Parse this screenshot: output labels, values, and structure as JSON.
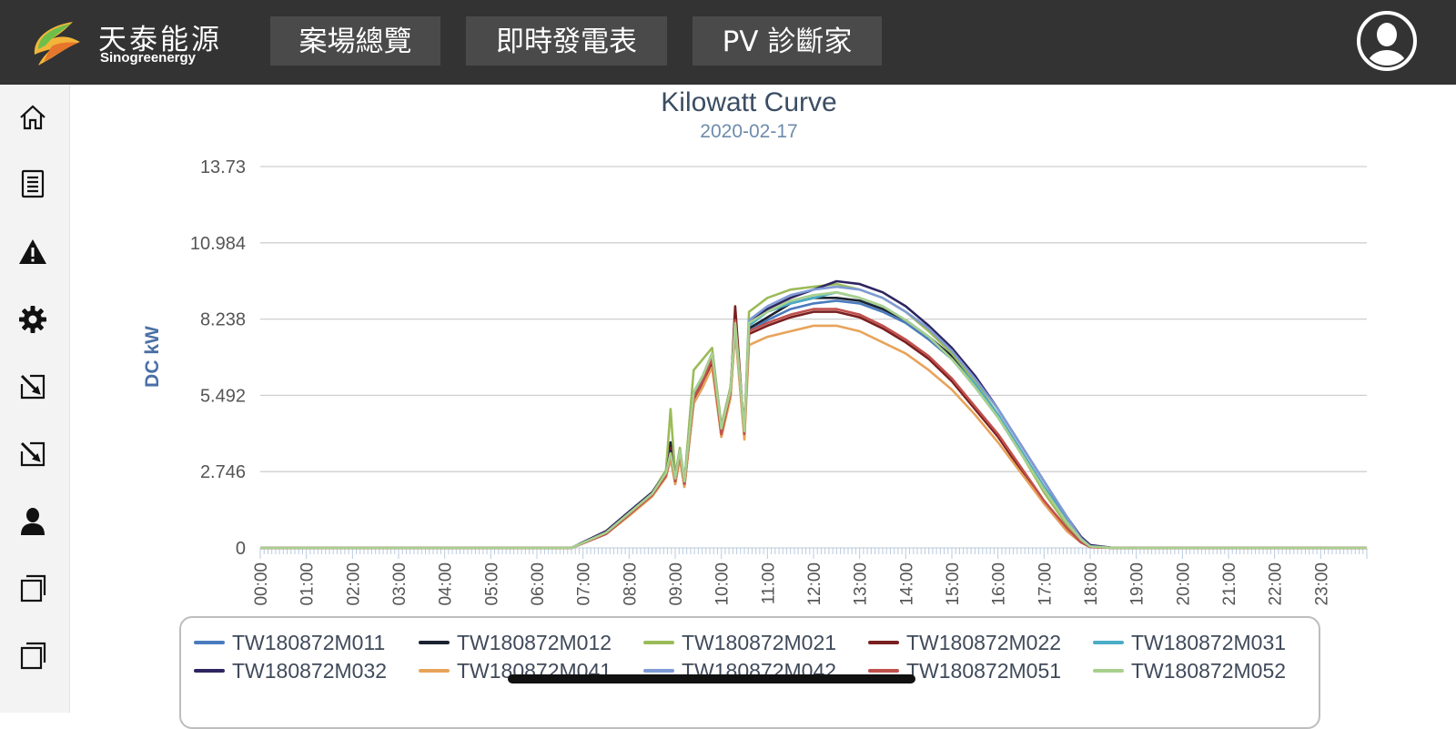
{
  "header": {
    "logo_cn": "天泰能源",
    "logo_en": "Sinogreenergy",
    "nav": [
      {
        "label": "案場總覽"
      },
      {
        "label": "即時發電表"
      },
      {
        "label": "PV 診斷家"
      }
    ],
    "colors": {
      "bar": "#333333",
      "button": "#4a4a4a"
    }
  },
  "sidebar": {
    "items": [
      {
        "icon": "home-icon"
      },
      {
        "icon": "document-icon"
      },
      {
        "icon": "warning-icon"
      },
      {
        "icon": "gear-icon"
      },
      {
        "icon": "edit-icon"
      },
      {
        "icon": "edit-icon"
      },
      {
        "icon": "user-icon"
      },
      {
        "icon": "window-icon"
      },
      {
        "icon": "window-icon"
      }
    ]
  },
  "chart_data": {
    "type": "line",
    "title": "Kilowatt Curve",
    "subtitle": "2020-02-17",
    "xlabel": "",
    "ylabel": "DC kW",
    "ylim": [
      0,
      13.73
    ],
    "yticks": [
      "0",
      "2.746",
      "5.492",
      "8.238",
      "10.984",
      "13.73"
    ],
    "xticks": [
      "00:00",
      "01:00",
      "02:00",
      "03:00",
      "04:00",
      "05:00",
      "06:00",
      "07:00",
      "08:00",
      "09:00",
      "10:00",
      "11:00",
      "12:00",
      "13:00",
      "14:00",
      "15:00",
      "16:00",
      "17:00",
      "18:00",
      "19:00",
      "20:00",
      "21:00",
      "22:00",
      "23:00"
    ],
    "grid": true,
    "legend_position": "bottom",
    "x_hours": [
      6.75,
      7.5,
      8.0,
      8.5,
      8.8,
      8.9,
      9.0,
      9.1,
      9.2,
      9.4,
      9.6,
      9.8,
      10.0,
      10.2,
      10.3,
      10.5,
      10.6,
      11.0,
      11.5,
      12.0,
      12.5,
      13.0,
      13.5,
      14.0,
      14.5,
      15.0,
      15.5,
      16.0,
      16.5,
      17.0,
      17.5,
      17.8,
      18.0,
      18.5
    ],
    "series": [
      {
        "name": "TW180872M011",
        "color": "#4a7bbf",
        "values": [
          0,
          0.55,
          1.2,
          1.9,
          2.6,
          3.2,
          2.4,
          3.3,
          2.3,
          5.2,
          5.8,
          6.6,
          4.1,
          5.5,
          7.9,
          4.0,
          7.8,
          8.2,
          8.6,
          8.8,
          8.9,
          8.8,
          8.5,
          8.1,
          7.5,
          6.8,
          5.8,
          4.7,
          3.4,
          2.1,
          0.9,
          0.3,
          0.05,
          0
        ]
      },
      {
        "name": "TW180872M012",
        "color": "#1a2230",
        "values": [
          0,
          0.6,
          1.3,
          2.0,
          2.7,
          3.8,
          2.5,
          3.5,
          2.3,
          5.4,
          6.0,
          6.8,
          4.2,
          5.6,
          8.1,
          4.1,
          7.9,
          8.3,
          8.8,
          9.0,
          9.0,
          8.9,
          8.6,
          8.2,
          7.6,
          6.9,
          5.9,
          4.8,
          3.5,
          2.2,
          1.0,
          0.35,
          0.08,
          0
        ]
      },
      {
        "name": "TW180872M021",
        "color": "#9bbb59",
        "values": [
          0,
          0.6,
          1.3,
          2.0,
          2.8,
          5.0,
          2.6,
          3.6,
          2.4,
          6.4,
          6.8,
          7.2,
          4.4,
          5.8,
          8.2,
          4.2,
          8.5,
          9.0,
          9.3,
          9.4,
          9.5,
          9.3,
          9.0,
          8.5,
          7.8,
          7.0,
          6.0,
          4.8,
          3.4,
          2.0,
          0.8,
          0.25,
          0.04,
          0
        ]
      },
      {
        "name": "TW180872M022",
        "color": "#7a1f1f",
        "values": [
          0,
          0.5,
          1.2,
          1.9,
          2.6,
          3.6,
          2.3,
          3.3,
          2.2,
          5.3,
          5.9,
          6.7,
          4.0,
          5.5,
          8.7,
          4.0,
          7.7,
          8.0,
          8.3,
          8.5,
          8.5,
          8.3,
          7.9,
          7.4,
          6.8,
          6.0,
          5.0,
          4.0,
          2.8,
          1.6,
          0.6,
          0.2,
          0.03,
          0
        ]
      },
      {
        "name": "TW180872M031",
        "color": "#4bacc6",
        "values": [
          0,
          0.55,
          1.2,
          1.9,
          2.6,
          3.3,
          2.4,
          3.4,
          2.3,
          5.5,
          6.1,
          6.9,
          4.2,
          5.6,
          8.0,
          4.1,
          8.0,
          8.5,
          8.8,
          9.0,
          9.2,
          9.0,
          8.7,
          8.2,
          7.6,
          6.8,
          5.9,
          4.8,
          3.5,
          2.2,
          1.0,
          0.35,
          0.06,
          0
        ]
      },
      {
        "name": "TW180872M032",
        "color": "#2e2560",
        "values": [
          0,
          0.6,
          1.3,
          2.0,
          2.7,
          3.5,
          2.5,
          3.5,
          2.4,
          5.6,
          6.2,
          7.0,
          4.3,
          5.7,
          8.1,
          4.2,
          8.1,
          8.6,
          9.0,
          9.3,
          9.6,
          9.5,
          9.2,
          8.7,
          8.0,
          7.2,
          6.2,
          5.0,
          3.7,
          2.4,
          1.1,
          0.4,
          0.1,
          0
        ]
      },
      {
        "name": "TW180872M041",
        "color": "#e8a35a",
        "values": [
          0,
          0.5,
          1.15,
          1.85,
          2.55,
          3.2,
          2.3,
          3.2,
          2.2,
          5.2,
          5.8,
          6.5,
          4.0,
          5.4,
          7.8,
          3.9,
          7.3,
          7.6,
          7.8,
          8.0,
          8.0,
          7.8,
          7.4,
          7.0,
          6.4,
          5.7,
          4.8,
          3.8,
          2.7,
          1.6,
          0.6,
          0.2,
          0.03,
          0
        ]
      },
      {
        "name": "TW180872M042",
        "color": "#7f9bd6",
        "values": [
          0,
          0.55,
          1.25,
          1.95,
          2.7,
          3.4,
          2.5,
          3.5,
          2.4,
          5.6,
          6.2,
          7.0,
          4.3,
          5.7,
          8.0,
          4.2,
          8.2,
          8.7,
          9.1,
          9.3,
          9.4,
          9.3,
          9.0,
          8.5,
          7.9,
          7.1,
          6.1,
          5.0,
          3.7,
          2.4,
          1.1,
          0.35,
          0.06,
          0
        ]
      },
      {
        "name": "TW180872M051",
        "color": "#c0504d",
        "values": [
          0,
          0.5,
          1.2,
          1.9,
          2.6,
          3.4,
          2.4,
          3.4,
          2.3,
          5.4,
          6.0,
          6.8,
          4.1,
          5.6,
          8.2,
          4.1,
          7.8,
          8.1,
          8.4,
          8.6,
          8.6,
          8.4,
          8.0,
          7.5,
          6.9,
          6.1,
          5.1,
          4.1,
          2.9,
          1.7,
          0.7,
          0.2,
          0.03,
          0
        ]
      },
      {
        "name": "TW180872M052",
        "color": "#a8d08d",
        "values": [
          0,
          0.55,
          1.25,
          1.95,
          2.7,
          3.4,
          2.5,
          3.5,
          2.4,
          5.6,
          6.2,
          7.0,
          4.3,
          5.7,
          8.1,
          4.2,
          8.1,
          8.5,
          8.9,
          9.1,
          9.2,
          9.0,
          8.7,
          8.2,
          7.6,
          6.8,
          5.8,
          4.7,
          3.4,
          2.1,
          0.9,
          0.3,
          0.05,
          0
        ]
      }
    ]
  }
}
